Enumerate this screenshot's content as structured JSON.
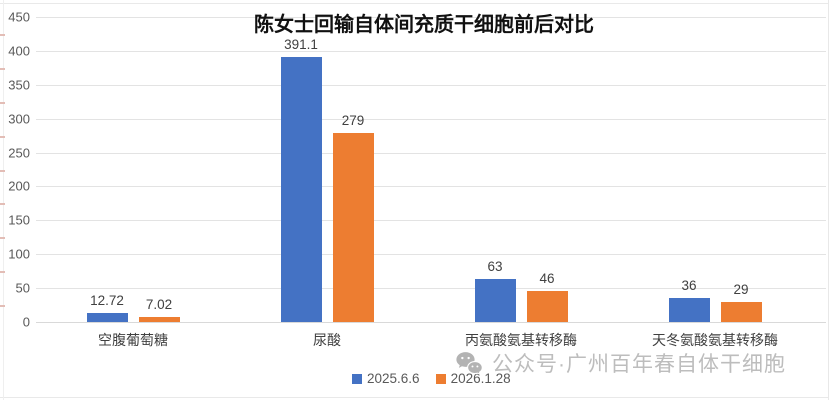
{
  "header": {
    "title": "陈女士回输自体间充质干细胞前后对比"
  },
  "watermark": {
    "icon": "wechat-icon",
    "text": "公众号·广州百年春自体干细胞"
  },
  "colors": {
    "series_2025": "#4472C4",
    "series_2026": "#ED7D31",
    "gridline": "#E3E3E3",
    "axis_text": "#595959",
    "value_label_text": "#404040",
    "watermark_gray": "#BDBDBD",
    "background": "#FFFFFF"
  },
  "chart_data": {
    "type": "bar",
    "title": "陈女士回输自体间充质干细胞前后对比",
    "categories": [
      "空腹葡萄糖",
      "尿酸",
      "丙氨酸氨基转移酶",
      "天冬氨酸氨基转移酶"
    ],
    "series": [
      {
        "name": "2025.6.6",
        "color": "#4472C4",
        "values": [
          12.72,
          391.1,
          63,
          36
        ],
        "value_labels": [
          "12.72",
          "391.1",
          "63",
          "36"
        ]
      },
      {
        "name": "2026.1.28",
        "color": "#ED7D31",
        "values": [
          7.02,
          279,
          46,
          29
        ],
        "value_labels": [
          "7.02",
          "279",
          "46",
          "29"
        ]
      }
    ],
    "xlabel": "",
    "ylabel": "",
    "ylim": [
      0,
      450
    ],
    "yticks": [
      0,
      50,
      100,
      150,
      200,
      250,
      300,
      350,
      400,
      450
    ],
    "grid": true,
    "legend_position": "bottom-center",
    "value_labels_shown": true
  }
}
